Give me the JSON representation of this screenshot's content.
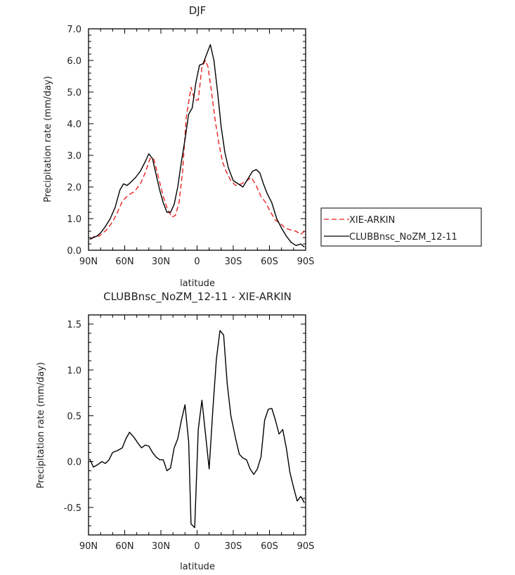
{
  "chart_data": [
    {
      "type": "line",
      "title": "DJF",
      "xlabel": "latitude",
      "ylabel": "Precipitation rate (mm/day)",
      "xlim": [
        90,
        -90
      ],
      "ylim": [
        0,
        7
      ],
      "xticks": [
        90,
        60,
        30,
        0,
        -30,
        -60,
        -90
      ],
      "xtick_labels": [
        "90N",
        "60N",
        "30N",
        "0",
        "30S",
        "60S",
        "90S"
      ],
      "yticks": [
        0,
        1,
        2,
        3,
        4,
        5,
        6,
        7
      ],
      "ytick_labels": [
        "0.0",
        "1.0",
        "2.0",
        "3.0",
        "4.0",
        "5.0",
        "6.0",
        "7.0"
      ],
      "legend_position": "right, outside the plot",
      "series": [
        {
          "name": "XIE-ARKIN",
          "color": "#e8201f",
          "dash": "dashed",
          "x": [
            88,
            85,
            81,
            78,
            75,
            70,
            66,
            62,
            57,
            52,
            47,
            43,
            39,
            36,
            32,
            28,
            25,
            21,
            18,
            15,
            12,
            9,
            5,
            2,
            -1,
            -4,
            -7,
            -9,
            -12,
            -15,
            -18,
            -21,
            -24,
            -28,
            -32,
            -37,
            -41,
            -45,
            -49,
            -53,
            -57,
            -61,
            -65,
            -69,
            -73,
            -77,
            -82,
            -86,
            -89
          ],
          "y": [
            0.35,
            0.45,
            0.45,
            0.55,
            0.65,
            0.9,
            1.2,
            1.55,
            1.75,
            1.85,
            2.1,
            2.45,
            2.9,
            2.9,
            2.3,
            1.7,
            1.35,
            1.05,
            1.1,
            1.5,
            2.5,
            4.2,
            5.15,
            4.75,
            4.75,
            5.8,
            6.0,
            5.8,
            5.0,
            4.1,
            3.4,
            2.8,
            2.5,
            2.2,
            2.05,
            2.1,
            2.2,
            2.3,
            2.05,
            1.7,
            1.5,
            1.2,
            0.95,
            0.85,
            0.7,
            0.65,
            0.6,
            0.5,
            0.6
          ]
        },
        {
          "name": "CLUBBnsc_NoZM_12-11",
          "color": "#000000",
          "dash": "solid",
          "x": [
            89,
            86,
            83,
            80,
            76,
            72,
            68,
            64,
            61,
            58,
            55,
            51,
            47,
            43,
            40,
            37,
            34,
            31,
            28,
            25,
            22,
            19,
            16,
            13,
            10,
            7,
            4,
            1,
            -2,
            -5,
            -8,
            -11,
            -14,
            -17,
            -20,
            -23,
            -26,
            -30,
            -34,
            -38,
            -42,
            -46,
            -49,
            -52,
            -55,
            -58,
            -62,
            -66,
            -70,
            -74,
            -78,
            -82,
            -86,
            -89
          ],
          "y": [
            0.35,
            0.4,
            0.45,
            0.55,
            0.75,
            1.0,
            1.35,
            1.9,
            2.1,
            2.05,
            2.15,
            2.3,
            2.5,
            2.8,
            3.05,
            2.9,
            2.4,
            1.9,
            1.5,
            1.2,
            1.2,
            1.45,
            2.0,
            2.8,
            3.5,
            4.3,
            4.5,
            5.3,
            5.85,
            5.9,
            6.2,
            6.5,
            6.0,
            5.0,
            3.9,
            3.1,
            2.6,
            2.2,
            2.1,
            2.0,
            2.25,
            2.5,
            2.55,
            2.45,
            2.1,
            1.8,
            1.5,
            1.0,
            0.7,
            0.45,
            0.25,
            0.15,
            0.2,
            0.1
          ]
        }
      ]
    },
    {
      "type": "line",
      "title": "CLUBBnsc_NoZM_12-11 - XIE-ARKIN",
      "xlabel": "latitude",
      "ylabel": "Precipitation rate (mm/day)",
      "xlim": [
        90,
        -90
      ],
      "ylim": [
        -0.8,
        1.6
      ],
      "xticks": [
        90,
        60,
        30,
        0,
        -30,
        -60,
        -90
      ],
      "xtick_labels": [
        "90N",
        "60N",
        "30N",
        "0",
        "30S",
        "60S",
        "90S"
      ],
      "yticks": [
        -0.5,
        0,
        0.5,
        1.0,
        1.5
      ],
      "ytick_labels": [
        "-0.5",
        "0.0",
        "0.5",
        "1.0",
        "1.5"
      ],
      "series": [
        {
          "color": "#000000",
          "dash": "solid",
          "x": [
            89,
            86,
            82,
            79,
            76,
            73,
            70,
            66,
            62,
            59,
            56,
            52,
            49,
            46,
            43,
            40,
            37,
            34,
            31,
            28,
            25,
            22,
            19,
            16,
            13,
            10,
            7,
            5,
            2,
            -1,
            -4,
            -7,
            -10,
            -13,
            -16,
            -19,
            -22,
            -25,
            -28,
            -32,
            -35,
            -38,
            -41,
            -44,
            -47,
            -50,
            -53,
            -56,
            -59,
            -62,
            -65,
            -68,
            -71,
            -74,
            -77,
            -80,
            -83,
            -86,
            -89
          ],
          "y": [
            0.03,
            -0.06,
            -0.03,
            0.0,
            -0.02,
            0.02,
            0.1,
            0.12,
            0.15,
            0.25,
            0.32,
            0.26,
            0.2,
            0.15,
            0.18,
            0.17,
            0.1,
            0.05,
            0.02,
            0.02,
            -0.1,
            -0.07,
            0.15,
            0.25,
            0.45,
            0.62,
            0.22,
            -0.68,
            -0.72,
            0.35,
            0.67,
            0.3,
            -0.08,
            0.55,
            1.12,
            1.43,
            1.38,
            0.85,
            0.5,
            0.25,
            0.08,
            0.04,
            0.02,
            -0.08,
            -0.14,
            -0.08,
            0.05,
            0.45,
            0.57,
            0.58,
            0.45,
            0.3,
            0.35,
            0.15,
            -0.12,
            -0.28,
            -0.43,
            -0.38,
            -0.45
          ]
        }
      ]
    }
  ]
}
